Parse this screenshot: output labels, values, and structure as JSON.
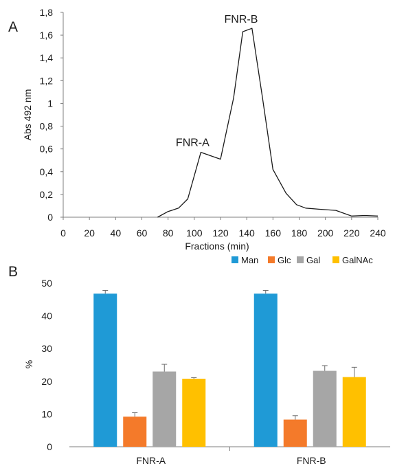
{
  "panels": {
    "a": "A",
    "b": "B"
  },
  "chart_data": [
    {
      "type": "line",
      "xlabel": "Fractions (min)",
      "ylabel": "Abs 492 nm",
      "xlim": [
        0,
        240
      ],
      "ylim": [
        0,
        1.8
      ],
      "x_ticks": [
        "0",
        "20",
        "40",
        "60",
        "80",
        "100",
        "120",
        "140",
        "160",
        "180",
        "200",
        "220",
        "240"
      ],
      "y_ticks": [
        "0",
        "0,2",
        "0,4",
        "0,6",
        "0,8",
        "1",
        "1,2",
        "1,4",
        "1,6",
        "1,8"
      ],
      "grid": false,
      "series": [
        {
          "color": "#1a1a1a",
          "x": [
            72,
            80,
            88,
            95,
            105,
            120,
            130,
            137,
            144,
            152,
            160,
            170,
            178,
            185,
            195,
            208,
            220,
            230,
            240
          ],
          "y": [
            0,
            0.05,
            0.08,
            0.16,
            0.57,
            0.51,
            1.05,
            1.63,
            1.66,
            1.05,
            0.42,
            0.21,
            0.11,
            0.08,
            0.07,
            0.06,
            0.01,
            0.015,
            0.01
          ]
        }
      ],
      "annotations": [
        {
          "text": "FNR-A",
          "x": 105,
          "y": 0.57
        },
        {
          "text": "FNR-B",
          "x": 142,
          "y": 1.66
        }
      ]
    },
    {
      "type": "bar",
      "categories": [
        "FNR-A",
        "FNR-B"
      ],
      "ylabel": "%",
      "ylim": [
        0,
        50
      ],
      "y_ticks": [
        "0",
        "10",
        "20",
        "30",
        "40",
        "50"
      ],
      "grid": false,
      "legend_position": "top-right",
      "series": [
        {
          "name": "Man",
          "color": "#1f9ad6",
          "values": [
            46.8,
            46.8
          ],
          "errors": [
            1.0,
            1.0
          ]
        },
        {
          "name": "Glc",
          "color": "#f47a2a",
          "values": [
            9.2,
            8.3
          ],
          "errors": [
            1.2,
            1.2
          ]
        },
        {
          "name": "Gal",
          "color": "#a6a6a6",
          "values": [
            23.0,
            23.2
          ],
          "errors": [
            2.2,
            1.6
          ]
        },
        {
          "name": "GalNAc",
          "color": "#ffc000",
          "values": [
            20.8,
            21.3
          ],
          "errors": [
            0.3,
            3.0
          ]
        }
      ]
    }
  ]
}
